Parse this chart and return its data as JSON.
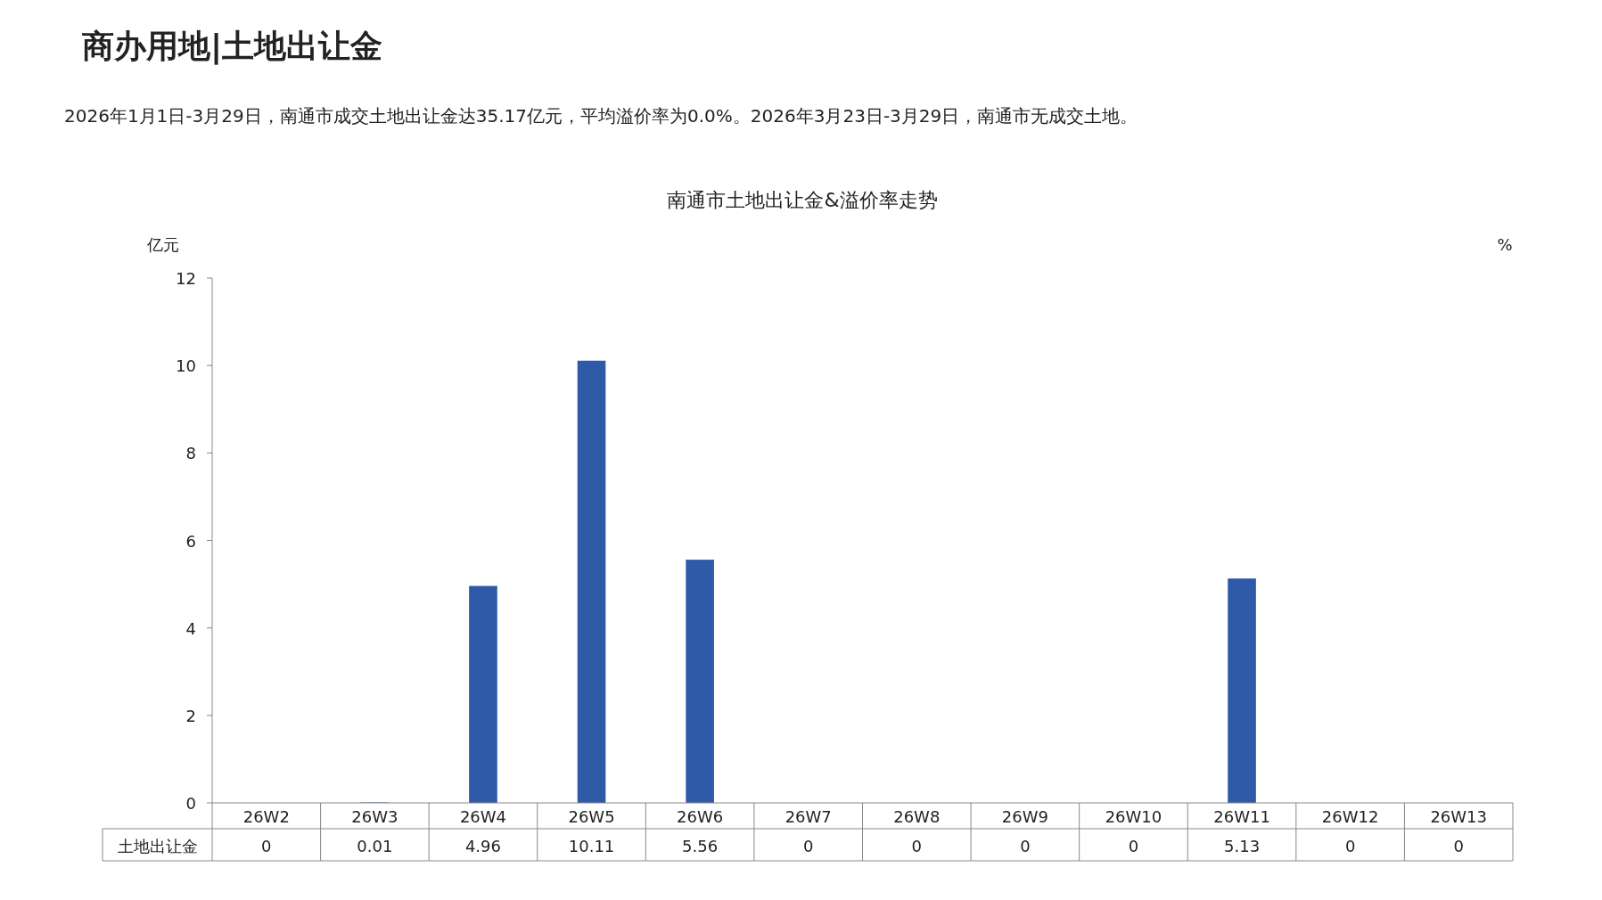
{
  "chart_data": {
    "type": "bar",
    "title": "南通市土地出让金&溢价率走势",
    "annotations": [
      "商办用地|土地出让金",
      "2026年1月1日-3月29日，南通市成交土地出让金达35.17亿元，平均溢价率为0.0%。2026年3月23日-3月29日，南通市无成交土地。"
    ],
    "ylabel": "亿元",
    "y2label": "%",
    "categories": [
      "26W2",
      "26W3",
      "26W4",
      "26W5",
      "26W6",
      "26W7",
      "26W8",
      "26W9",
      "26W10",
      "26W11",
      "26W12",
      "26W13"
    ],
    "series": [
      {
        "name": "土地出让金",
        "color": "#2e5aa8",
        "values": [
          0,
          0.01,
          4.96,
          10.11,
          5.56,
          0,
          0,
          0,
          0,
          5.13,
          0,
          0
        ]
      }
    ],
    "ylim": [
      0,
      12
    ],
    "yticks": [
      0,
      2,
      4,
      6,
      8,
      10,
      12
    ],
    "grid": false,
    "legend": false,
    "data_labels": true
  }
}
